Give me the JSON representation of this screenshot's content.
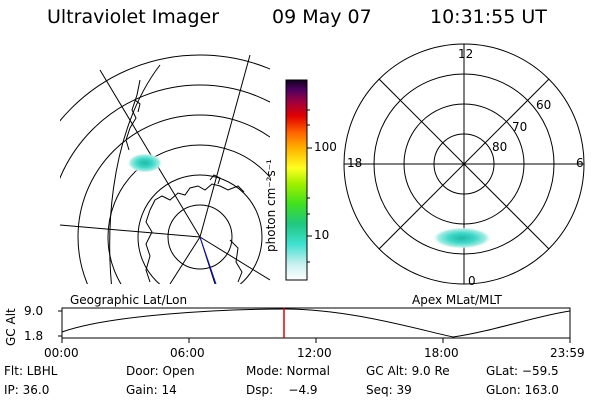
{
  "header": {
    "instrument": "Ultraviolet Imager",
    "date": "09 May 07",
    "time": "10:31:55 UT"
  },
  "colorbar": {
    "unit_label": "photon cm⁻²s⁻¹",
    "ticks": [
      "100",
      "10"
    ]
  },
  "polar_plot": {
    "mlt_labels": {
      "top": "12",
      "left": "18",
      "right": "6",
      "bottom": "0"
    },
    "lat_labels": [
      "60",
      "70",
      "80"
    ]
  },
  "panel_labels": {
    "left": "Geographic Lat/Lon",
    "right": "Apex MLat/MLT"
  },
  "altitude_strip": {
    "ylabel": "GC Alt",
    "ytick_top": "9.0",
    "ytick_bottom": "1.8",
    "xticks": [
      "00:00",
      "06:00",
      "12:00",
      "18:00",
      "23:59"
    ],
    "marker_color": "#e00000"
  },
  "info": {
    "row1": {
      "filter": "Flt: LBHL",
      "door": "Door: Open",
      "mode": "Mode: Normal",
      "gc_alt": "GC Alt: 9.0 Re",
      "glat": "GLat: −59.5"
    },
    "row2": {
      "ip": "IP: 36.0",
      "gain": "Gain: 14",
      "dsp": "Dsp:    −4.9",
      "seq": "Seq: 39",
      "glon": "GLon: 163.0"
    }
  }
}
